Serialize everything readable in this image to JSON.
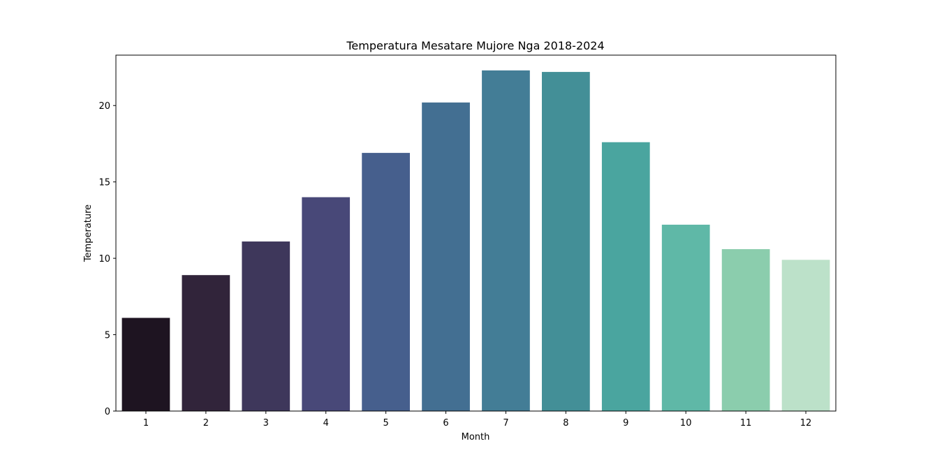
{
  "chart_data": {
    "type": "bar",
    "title": "Temperatura Mesatare Mujore Nga 2018-2024",
    "xlabel": "Month",
    "ylabel": "Temperature",
    "categories": [
      "1",
      "2",
      "3",
      "4",
      "5",
      "6",
      "7",
      "8",
      "9",
      "10",
      "11",
      "12"
    ],
    "values": [
      6.1,
      8.9,
      11.1,
      14.0,
      16.9,
      20.2,
      22.3,
      22.2,
      17.6,
      12.2,
      10.6,
      9.9
    ],
    "colors": [
      "#1e1421",
      "#31243a",
      "#3e375b",
      "#484878",
      "#465f8d",
      "#436f92",
      "#437d96",
      "#438f97",
      "#4aa59f",
      "#5fb8a7",
      "#8bcdad",
      "#bce1c9"
    ],
    "ylim": [
      0,
      23.3
    ],
    "yticks": [
      0,
      5,
      10,
      15,
      20
    ],
    "grid": false,
    "legend": "none"
  }
}
